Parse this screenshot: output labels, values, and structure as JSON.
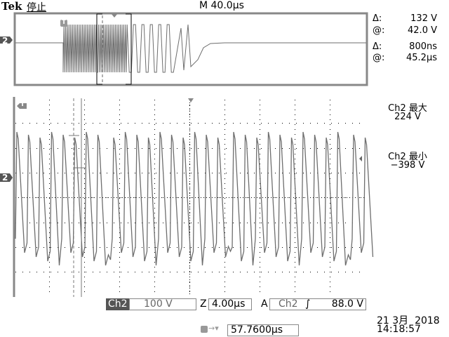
{
  "header": {
    "brand": "Tek",
    "status": "停止",
    "timebase": "M 40.0µs"
  },
  "cursor_readout": {
    "dv_label": "Δ:",
    "dv": "132 V",
    "v_at_label": "@:",
    "v_at": "42.0 V",
    "dt_label": "Δ:",
    "dt": "800ns",
    "t_at_label": "@:",
    "t_at": "45.2µs"
  },
  "measurements": [
    {
      "label": "Ch2 最大",
      "value": "224 V"
    },
    {
      "label": "Ch2 最小",
      "value": "−398 V"
    }
  ],
  "markers": {
    "channel": "2",
    "trigger": "T"
  },
  "bottom": {
    "channel": "Ch2",
    "volts_div": "100 V",
    "zoom_label": "Z",
    "zoom_div": "4.00µs",
    "trigger_label": "A",
    "trigger_source": "Ch2",
    "trigger_slope": "rising",
    "trigger_slope_glyph": "∫",
    "trigger_level": "88.0 V",
    "trigger_pos": "57.7600µs",
    "date": "21 3月  2018",
    "time": "14:18:57"
  },
  "colors": {
    "trace": "#6e6e6e",
    "grid": "#000",
    "frame": "#888"
  }
}
